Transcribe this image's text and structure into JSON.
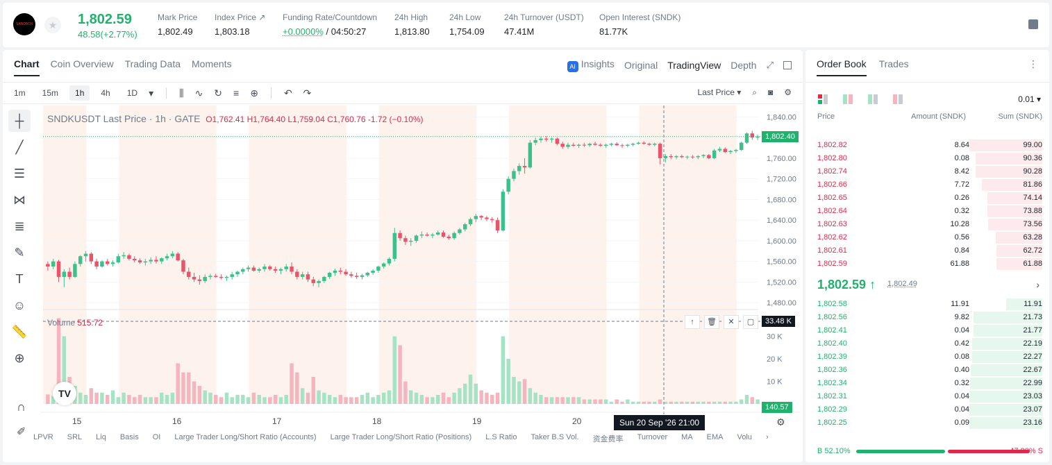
{
  "header": {
    "logo_text": "SANDBOX",
    "last_price": "1,802.59",
    "change": "48.58(+2.77%)",
    "stats": [
      {
        "label": "Mark Price",
        "value": "1,802.49"
      },
      {
        "label": "Index Price ↗",
        "value": "1,803.18"
      },
      {
        "label": "Funding Rate/Countdown",
        "value_green": "+0.0000%",
        "value": " / 04:50:27"
      },
      {
        "label": "24h High",
        "value": "1,813.80"
      },
      {
        "label": "24h Low",
        "value": "1,754.09"
      },
      {
        "label": "24h Turnover (USDT)",
        "value": "47.41M"
      },
      {
        "label": "Open Interest (SNDK)",
        "value": "81.77K"
      }
    ]
  },
  "chart_tabs": [
    "Chart",
    "Coin Overview",
    "Trading Data",
    "Moments"
  ],
  "view_tabs": {
    "insights": "Insights",
    "original": "Original",
    "tradingview": "TradingView",
    "depth": "Depth"
  },
  "timeframes": [
    "1m",
    "15m",
    "1h",
    "4h",
    "1D"
  ],
  "selected_timeframe": "1h",
  "price_type": "Last Price ▾",
  "legend": {
    "symbol": "SNDKUSDT Last Price · 1h · GATE",
    "o_label": "O",
    "o": "1,762.41",
    "h_label": "H",
    "h": "1,764.40",
    "l_label": "L",
    "l": "1,759.04",
    "c_label": "C",
    "c": "1,760.76",
    "chg": "-1.72 (−0.10%)"
  },
  "volume_legend": {
    "label": "Volume",
    "value": "515.72"
  },
  "price_axis": [
    "1,840.00",
    "1,800.00",
    "1,760.00",
    "1,720.00",
    "1,680.00",
    "1,640.00",
    "1,600.00",
    "1,560.00",
    "1,520.00",
    "1,480.00"
  ],
  "volume_axis": [
    "30 K",
    "20 K",
    "10 K"
  ],
  "date_axis": [
    "15",
    "16",
    "17",
    "18",
    "19",
    "20"
  ],
  "current_price_tag": "1,802.40",
  "volume_tag": "33.48 K",
  "volume_tag_last": "140.57",
  "crosshair_date": "Sun 20 Sep '26   21:00",
  "indicators": [
    "LPVR",
    "SRL",
    "Liq",
    "Basis",
    "OI",
    "Large Trader Long/Short Ratio (Accounts)",
    "Large Trader Long/Short Ratio (Positions)",
    "L.S Ratio",
    "Taker B.S Vol.",
    "资金费率",
    "Turnover",
    "MA",
    "EMA",
    "Volu"
  ],
  "chart_data": {
    "type": "candlestick",
    "ylim": [
      1460,
      1850
    ],
    "candles": [
      [
        1555,
        1560,
        1542,
        1550
      ],
      [
        1550,
        1565,
        1545,
        1560
      ],
      [
        1560,
        1563,
        1520,
        1530
      ],
      [
        1530,
        1545,
        1510,
        1540
      ],
      [
        1540,
        1548,
        1525,
        1530
      ],
      [
        1530,
        1560,
        1528,
        1555
      ],
      [
        1555,
        1572,
        1550,
        1570
      ],
      [
        1570,
        1580,
        1560,
        1575
      ],
      [
        1575,
        1578,
        1555,
        1560
      ],
      [
        1560,
        1565,
        1545,
        1550
      ],
      [
        1550,
        1562,
        1548,
        1560
      ],
      [
        1560,
        1565,
        1552,
        1555
      ],
      [
        1555,
        1562,
        1550,
        1558
      ],
      [
        1558,
        1575,
        1556,
        1570
      ],
      [
        1570,
        1578,
        1565,
        1572
      ],
      [
        1572,
        1575,
        1562,
        1565
      ],
      [
        1565,
        1570,
        1558,
        1562
      ],
      [
        1562,
        1566,
        1555,
        1558
      ],
      [
        1558,
        1565,
        1552,
        1560
      ],
      [
        1560,
        1568,
        1555,
        1563
      ],
      [
        1563,
        1570,
        1556,
        1560
      ],
      [
        1560,
        1568,
        1555,
        1566
      ],
      [
        1566,
        1575,
        1562,
        1570
      ],
      [
        1570,
        1580,
        1566,
        1575
      ],
      [
        1575,
        1578,
        1560,
        1562
      ],
      [
        1562,
        1565,
        1535,
        1540
      ],
      [
        1540,
        1548,
        1525,
        1530
      ],
      [
        1530,
        1538,
        1520,
        1525
      ],
      [
        1525,
        1533,
        1515,
        1522
      ],
      [
        1522,
        1535,
        1518,
        1530
      ],
      [
        1530,
        1536,
        1525,
        1532
      ],
      [
        1532,
        1536,
        1528,
        1530
      ],
      [
        1530,
        1535,
        1525,
        1528
      ],
      [
        1528,
        1532,
        1522,
        1530
      ],
      [
        1530,
        1540,
        1525,
        1535
      ],
      [
        1535,
        1542,
        1530,
        1540
      ],
      [
        1540,
        1548,
        1535,
        1545
      ],
      [
        1545,
        1552,
        1540,
        1548
      ],
      [
        1548,
        1552,
        1540,
        1542
      ],
      [
        1542,
        1548,
        1538,
        1545
      ],
      [
        1545,
        1555,
        1540,
        1550
      ],
      [
        1550,
        1553,
        1542,
        1545
      ],
      [
        1545,
        1550,
        1538,
        1542
      ],
      [
        1542,
        1548,
        1535,
        1545
      ],
      [
        1545,
        1555,
        1540,
        1550
      ],
      [
        1550,
        1558,
        1535,
        1540
      ],
      [
        1540,
        1545,
        1525,
        1530
      ],
      [
        1530,
        1540,
        1525,
        1535
      ],
      [
        1535,
        1540,
        1520,
        1525
      ],
      [
        1525,
        1530,
        1512,
        1518
      ],
      [
        1518,
        1525,
        1510,
        1522
      ],
      [
        1522,
        1532,
        1518,
        1530
      ],
      [
        1530,
        1540,
        1526,
        1538
      ],
      [
        1538,
        1546,
        1532,
        1542
      ],
      [
        1542,
        1548,
        1535,
        1540
      ],
      [
        1540,
        1545,
        1532,
        1535
      ],
      [
        1535,
        1540,
        1528,
        1532
      ],
      [
        1532,
        1538,
        1526,
        1530
      ],
      [
        1530,
        1536,
        1525,
        1533
      ],
      [
        1533,
        1540,
        1530,
        1538
      ],
      [
        1538,
        1545,
        1534,
        1542
      ],
      [
        1542,
        1552,
        1538,
        1550
      ],
      [
        1550,
        1558,
        1546,
        1556
      ],
      [
        1556,
        1568,
        1552,
        1565
      ],
      [
        1565,
        1625,
        1560,
        1615
      ],
      [
        1615,
        1620,
        1600,
        1605
      ],
      [
        1605,
        1610,
        1592,
        1598
      ],
      [
        1598,
        1605,
        1590,
        1600
      ],
      [
        1600,
        1612,
        1596,
        1610
      ],
      [
        1610,
        1618,
        1605,
        1612
      ],
      [
        1612,
        1616,
        1608,
        1610
      ],
      [
        1610,
        1615,
        1605,
        1612
      ],
      [
        1612,
        1620,
        1610,
        1616
      ],
      [
        1616,
        1620,
        1606,
        1608
      ],
      [
        1608,
        1612,
        1602,
        1605
      ],
      [
        1605,
        1618,
        1602,
        1615
      ],
      [
        1615,
        1625,
        1612,
        1622
      ],
      [
        1622,
        1635,
        1618,
        1632
      ],
      [
        1632,
        1645,
        1628,
        1642
      ],
      [
        1642,
        1652,
        1636,
        1648
      ],
      [
        1648,
        1650,
        1640,
        1645
      ],
      [
        1645,
        1648,
        1638,
        1642
      ],
      [
        1642,
        1646,
        1635,
        1640
      ],
      [
        1640,
        1645,
        1615,
        1620
      ],
      [
        1620,
        1700,
        1618,
        1695
      ],
      [
        1695,
        1725,
        1690,
        1720
      ],
      [
        1720,
        1740,
        1715,
        1735
      ],
      [
        1735,
        1750,
        1728,
        1745
      ],
      [
        1745,
        1760,
        1730,
        1742
      ],
      [
        1742,
        1795,
        1740,
        1790
      ],
      [
        1790,
        1800,
        1785,
        1795
      ],
      [
        1795,
        1802,
        1790,
        1798
      ],
      [
        1798,
        1803,
        1792,
        1796
      ],
      [
        1796,
        1800,
        1790,
        1798
      ],
      [
        1798,
        1800,
        1785,
        1788
      ],
      [
        1788,
        1792,
        1778,
        1782
      ],
      [
        1782,
        1790,
        1778,
        1786
      ],
      [
        1786,
        1790,
        1782,
        1784
      ],
      [
        1784,
        1788,
        1780,
        1786
      ],
      [
        1786,
        1790,
        1782,
        1785
      ],
      [
        1785,
        1790,
        1782,
        1788
      ],
      [
        1788,
        1792,
        1784,
        1786
      ],
      [
        1786,
        1789,
        1782,
        1784
      ],
      [
        1784,
        1788,
        1780,
        1786
      ],
      [
        1786,
        1790,
        1783,
        1788
      ],
      [
        1788,
        1791,
        1784,
        1785
      ],
      [
        1785,
        1788,
        1780,
        1784
      ],
      [
        1784,
        1788,
        1781,
        1786
      ],
      [
        1786,
        1790,
        1783,
        1788
      ],
      [
        1788,
        1792,
        1786,
        1790
      ],
      [
        1790,
        1793,
        1786,
        1788
      ],
      [
        1788,
        1790,
        1784,
        1786
      ],
      [
        1786,
        1790,
        1783,
        1788
      ],
      [
        1788,
        1790,
        1748,
        1760
      ],
      [
        1760,
        1768,
        1752,
        1764
      ],
      [
        1764,
        1768,
        1758,
        1762
      ],
      [
        1762,
        1766,
        1758,
        1764
      ],
      [
        1764,
        1767,
        1760,
        1762
      ],
      [
        1762,
        1765,
        1758,
        1763
      ],
      [
        1763,
        1766,
        1759,
        1762
      ],
      [
        1762,
        1766,
        1758,
        1764
      ],
      [
        1764,
        1768,
        1760,
        1766
      ],
      [
        1766,
        1768,
        1758,
        1760
      ],
      [
        1760,
        1778,
        1758,
        1775
      ],
      [
        1775,
        1782,
        1772,
        1778
      ],
      [
        1778,
        1781,
        1770,
        1772
      ],
      [
        1772,
        1776,
        1768,
        1774
      ],
      [
        1774,
        1778,
        1770,
        1776
      ],
      [
        1776,
        1792,
        1774,
        1790
      ],
      [
        1790,
        1810,
        1788,
        1808
      ],
      [
        1808,
        1813,
        1796,
        1800
      ],
      [
        1800,
        1806,
        1795,
        1802
      ]
    ],
    "volume": [
      4.2,
      3.5,
      38,
      30,
      12,
      8,
      5,
      4,
      7,
      5,
      5,
      4,
      6,
      3,
      5,
      4,
      3,
      4,
      3,
      3,
      3,
      5,
      4,
      5,
      18,
      14,
      14,
      10,
      8,
      6,
      5,
      4,
      3,
      5,
      3,
      4,
      4,
      3,
      5,
      4,
      3,
      3,
      4,
      3,
      4,
      18,
      14,
      7,
      5,
      12,
      6,
      5,
      4,
      3,
      4,
      3,
      3,
      3,
      4,
      5,
      3,
      4,
      5,
      6,
      30,
      26,
      10,
      6,
      5,
      4,
      3,
      3,
      4,
      5,
      3,
      5,
      7,
      9,
      13,
      9,
      6,
      5,
      4,
      5,
      30,
      20,
      12,
      10,
      11,
      7,
      5,
      4,
      3,
      3,
      3,
      3,
      3,
      3,
      3,
      2,
      2,
      2,
      2,
      2,
      1,
      2,
      1,
      2,
      1,
      1,
      1,
      1,
      1,
      2,
      1,
      1,
      1,
      1,
      1,
      1,
      1,
      1,
      1,
      1,
      1,
      1,
      1,
      1,
      2,
      4,
      3,
      2
    ]
  },
  "book": {
    "tabs": [
      "Order Book",
      "Trades"
    ],
    "precision": "0.01 ▾",
    "headers": {
      "price": "Price",
      "amount": "Amount (SNDK)",
      "sum": "Sum (SNDK)"
    },
    "asks": [
      {
        "price": "1,802.82",
        "amount": "8.64",
        "sum": "99.00",
        "depth": 1.0
      },
      {
        "price": "1,802.80",
        "amount": "0.08",
        "sum": "90.36",
        "depth": 0.91
      },
      {
        "price": "1,802.74",
        "amount": "8.42",
        "sum": "90.28",
        "depth": 0.91
      },
      {
        "price": "1,802.66",
        "amount": "7.72",
        "sum": "81.86",
        "depth": 0.83
      },
      {
        "price": "1,802.65",
        "amount": "0.26",
        "sum": "74.14",
        "depth": 0.75
      },
      {
        "price": "1,802.64",
        "amount": "0.32",
        "sum": "73.88",
        "depth": 0.75
      },
      {
        "price": "1,802.63",
        "amount": "10.28",
        "sum": "73.56",
        "depth": 0.74
      },
      {
        "price": "1,802.62",
        "amount": "0.56",
        "sum": "63.28",
        "depth": 0.64
      },
      {
        "price": "1,802.61",
        "amount": "0.84",
        "sum": "62.72",
        "depth": 0.63
      },
      {
        "price": "1,802.59",
        "amount": "61.88",
        "sum": "61.88",
        "depth": 0.63
      }
    ],
    "mid_price": "1,802.59 ↑",
    "mid_mark": "1,802.49",
    "bids": [
      {
        "price": "1,802.58",
        "amount": "11.91",
        "sum": "11.91",
        "depth": 0.5
      },
      {
        "price": "1,802.56",
        "amount": "9.82",
        "sum": "21.73",
        "depth": 0.94
      },
      {
        "price": "1,802.41",
        "amount": "0.04",
        "sum": "21.77",
        "depth": 0.94
      },
      {
        "price": "1,802.40",
        "amount": "0.42",
        "sum": "22.19",
        "depth": 0.96
      },
      {
        "price": "1,802.39",
        "amount": "0.08",
        "sum": "22.27",
        "depth": 0.96
      },
      {
        "price": "1,802.36",
        "amount": "0.40",
        "sum": "22.67",
        "depth": 0.98
      },
      {
        "price": "1,802.34",
        "amount": "0.32",
        "sum": "22.99",
        "depth": 0.99
      },
      {
        "price": "1,802.31",
        "amount": "0.04",
        "sum": "23.03",
        "depth": 1.0
      },
      {
        "price": "1,802.29",
        "amount": "0.04",
        "sum": "23.07",
        "depth": 1.0
      },
      {
        "price": "1,802.25",
        "amount": "0.09",
        "sum": "23.16",
        "depth": 1.0
      }
    ],
    "buy_ratio": "B 52.10%",
    "sell_ratio": "47.90% S",
    "buy_fraction": 0.521
  },
  "colors": {
    "up": "#20b26c",
    "down": "#e0294a",
    "up_candle": "#3cc18c",
    "down_candle": "#e8546a"
  }
}
